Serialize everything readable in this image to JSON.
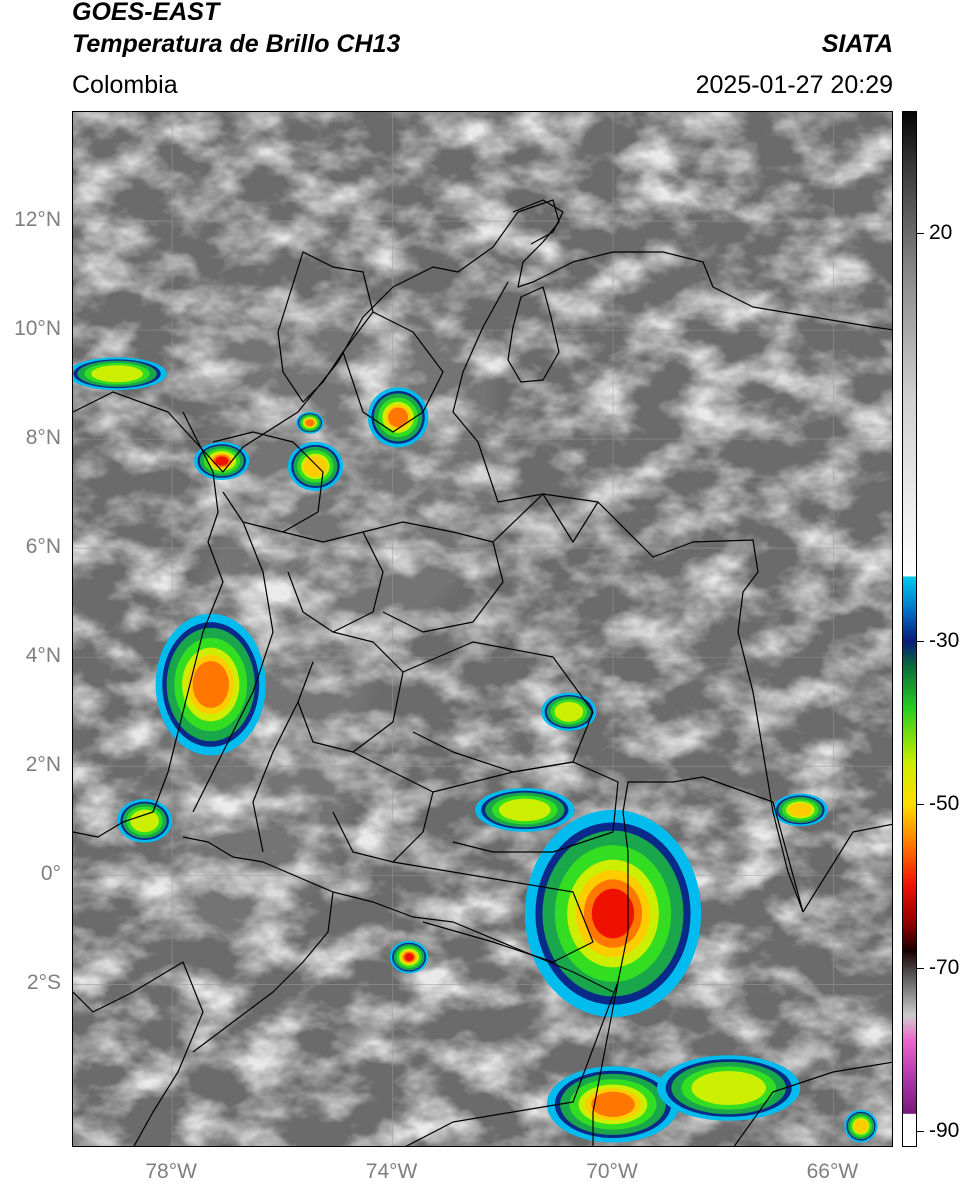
{
  "header": {
    "satellite": "GOES-EAST",
    "product": "Temperatura de Brillo CH13",
    "brand": "SIATA",
    "region": "Colombia",
    "timestamp": "2025-01-27 20:29"
  },
  "map": {
    "lon_range": [
      -79.8,
      -64.9
    ],
    "lat_range": [
      -5.0,
      14.0
    ],
    "grid": true,
    "lat_ticks": [
      {
        "value": 12,
        "label": "12°N"
      },
      {
        "value": 10,
        "label": "10°N"
      },
      {
        "value": 8,
        "label": "8°N"
      },
      {
        "value": 6,
        "label": "6°N"
      },
      {
        "value": 4,
        "label": "4°N"
      },
      {
        "value": 2,
        "label": "2°N"
      },
      {
        "value": 0,
        "label": "0°"
      },
      {
        "value": -2,
        "label": "2°S"
      }
    ],
    "lon_ticks": [
      {
        "value": -78,
        "label": "78°W"
      },
      {
        "value": -74,
        "label": "74°W"
      },
      {
        "value": -70,
        "label": "70°W"
      },
      {
        "value": -66,
        "label": "66°W"
      }
    ],
    "storm_cells": [
      {
        "lon": -79.0,
        "lat": 9.2,
        "rx": 0.9,
        "ry": 0.3,
        "intensity": 0.55
      },
      {
        "lon": -77.1,
        "lat": 7.6,
        "rx": 0.5,
        "ry": 0.35,
        "intensity": 0.9
      },
      {
        "lon": -75.4,
        "lat": 7.5,
        "rx": 0.5,
        "ry": 0.45,
        "intensity": 0.7
      },
      {
        "lon": -75.5,
        "lat": 8.3,
        "rx": 0.25,
        "ry": 0.2,
        "intensity": 0.75
      },
      {
        "lon": -73.9,
        "lat": 8.4,
        "rx": 0.55,
        "ry": 0.55,
        "intensity": 0.8
      },
      {
        "lon": -77.3,
        "lat": 3.5,
        "rx": 1.0,
        "ry": 1.3,
        "intensity": 0.8
      },
      {
        "lon": -78.5,
        "lat": 1.0,
        "rx": 0.5,
        "ry": 0.4,
        "intensity": 0.5
      },
      {
        "lon": -70.8,
        "lat": 3.0,
        "rx": 0.5,
        "ry": 0.35,
        "intensity": 0.6
      },
      {
        "lon": -71.6,
        "lat": 1.2,
        "rx": 0.9,
        "ry": 0.4,
        "intensity": 0.5
      },
      {
        "lon": -70.0,
        "lat": -0.7,
        "rx": 1.6,
        "ry": 1.9,
        "intensity": 0.85
      },
      {
        "lon": -73.7,
        "lat": -1.5,
        "rx": 0.35,
        "ry": 0.3,
        "intensity": 0.85
      },
      {
        "lon": -70.0,
        "lat": -4.2,
        "rx": 1.2,
        "ry": 0.7,
        "intensity": 0.8
      },
      {
        "lon": -67.9,
        "lat": -3.9,
        "rx": 1.3,
        "ry": 0.6,
        "intensity": 0.5
      },
      {
        "lon": -66.6,
        "lat": 1.2,
        "rx": 0.5,
        "ry": 0.3,
        "intensity": 0.7
      },
      {
        "lon": -65.5,
        "lat": -4.6,
        "rx": 0.3,
        "ry": 0.3,
        "intensity": 0.7
      }
    ]
  },
  "colorbar": {
    "vmin": -92,
    "vmax": 35,
    "ticks": [
      {
        "value": 20,
        "label": "20"
      },
      {
        "value": -30,
        "label": "-30"
      },
      {
        "value": -50,
        "label": "-50"
      },
      {
        "value": -70,
        "label": "-70"
      },
      {
        "value": -90,
        "label": "-90"
      }
    ],
    "stops": [
      {
        "value": 35,
        "color": "#050505"
      },
      {
        "value": 28,
        "color": "#3a3a3a"
      },
      {
        "value": 15,
        "color": "#8a8a8a"
      },
      {
        "value": 0,
        "color": "#d0d0d0"
      },
      {
        "value": -22,
        "color": "#ffffff"
      },
      {
        "value": -22.1,
        "color": "#00ccee"
      },
      {
        "value": -26,
        "color": "#0077cc"
      },
      {
        "value": -30,
        "color": "#0a1a7a"
      },
      {
        "value": -33,
        "color": "#0a6a3a"
      },
      {
        "value": -38,
        "color": "#22cc22"
      },
      {
        "value": -45,
        "color": "#ccee00"
      },
      {
        "value": -50,
        "color": "#ffdd00"
      },
      {
        "value": -55,
        "color": "#ff7700"
      },
      {
        "value": -60,
        "color": "#ee1100"
      },
      {
        "value": -65,
        "color": "#880000"
      },
      {
        "value": -68,
        "color": "#1a0000"
      },
      {
        "value": -71,
        "color": "#555555"
      },
      {
        "value": -76,
        "color": "#cccccc"
      },
      {
        "value": -79,
        "color": "#ee66cc"
      },
      {
        "value": -84,
        "color": "#aa33aa"
      },
      {
        "value": -88,
        "color": "#7a1a7a"
      },
      {
        "value": -88.1,
        "color": "#ffffff"
      },
      {
        "value": -92,
        "color": "#ffffff"
      }
    ]
  }
}
